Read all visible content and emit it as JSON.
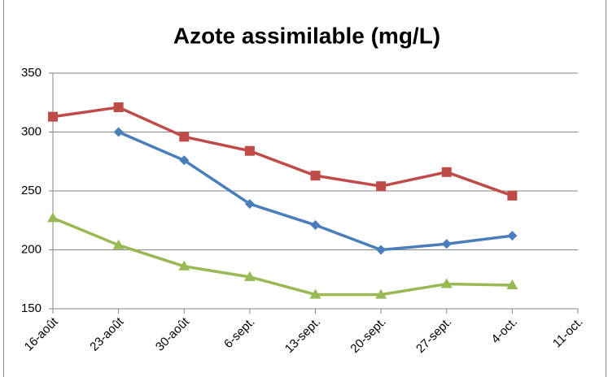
{
  "chart_data": {
    "type": "line",
    "title": "Azote assimilable (mg/L)",
    "categories": [
      "16-août",
      "23-août",
      "30-août",
      "6-sept.",
      "13-sept.",
      "20-sept.",
      "27-sept.",
      "4-oct.",
      "11-oct."
    ],
    "series": [
      {
        "color": "#4a7ebb",
        "marker": "diamond",
        "values": [
          null,
          300,
          276,
          239,
          221,
          200,
          205,
          212,
          null
        ]
      },
      {
        "color": "#be4b48",
        "marker": "square",
        "values": [
          313,
          321,
          296,
          284,
          263,
          254,
          266,
          246,
          null
        ]
      },
      {
        "color": "#98b954",
        "marker": "triangle",
        "values": [
          227,
          204,
          186,
          177,
          162,
          162,
          171,
          170,
          null
        ]
      }
    ],
    "ylim": [
      150,
      350
    ],
    "yticks": [
      150,
      200,
      250,
      300,
      350
    ],
    "grid": true
  }
}
